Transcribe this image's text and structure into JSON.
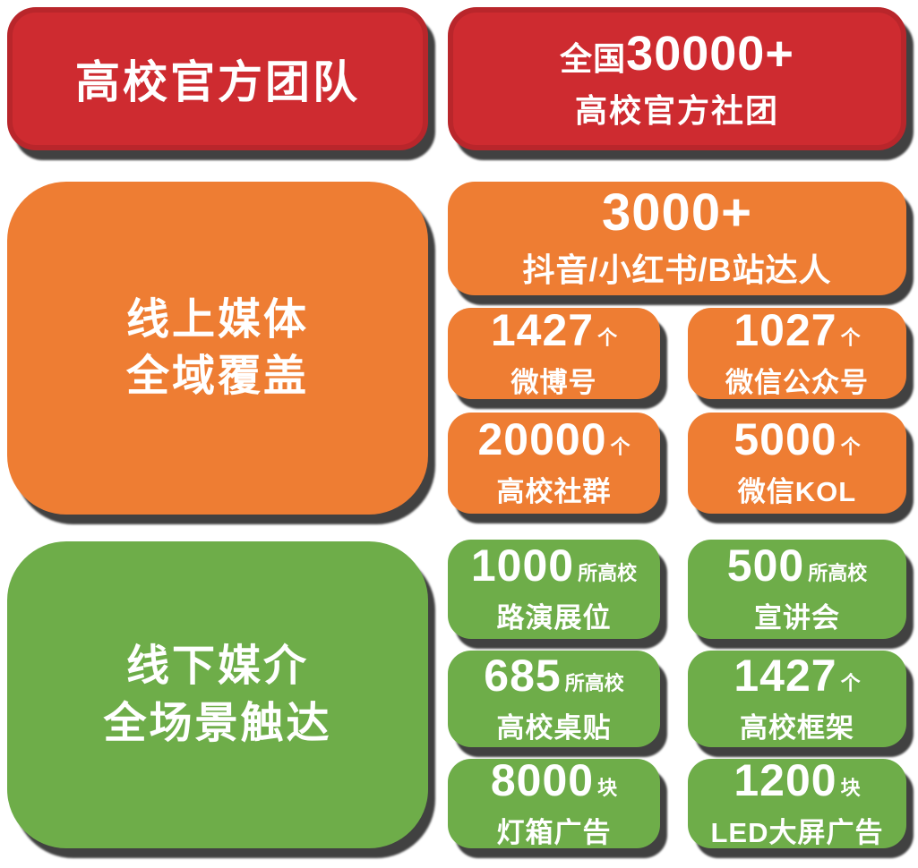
{
  "colors": {
    "red": "#ce2b30",
    "orange": "#ee7d33",
    "green": "#6ead49",
    "text": "#ffffff",
    "background": "#ffffff"
  },
  "red_section": {
    "title": "高校官方团队",
    "stat": {
      "prefix": "全国",
      "number": "30000+",
      "label": "高校官方社团"
    }
  },
  "orange_section": {
    "title_line1": "线上媒体",
    "title_line2": "全域覆盖",
    "wide_stat": {
      "number": "3000+",
      "label": "抖音/小红书/B站达人"
    },
    "stats": [
      {
        "number": "1427",
        "unit": "个",
        "label": "微博号"
      },
      {
        "number": "1027",
        "unit": "个",
        "label": "微信公众号"
      },
      {
        "number": "20000",
        "unit": "个",
        "label": "高校社群"
      },
      {
        "number": "5000",
        "unit": "个",
        "label": "微信KOL"
      }
    ]
  },
  "green_section": {
    "title_line1": "线下媒介",
    "title_line2": "全场景触达",
    "stats": [
      {
        "number": "1000",
        "unit": "所高校",
        "label": "路演展位"
      },
      {
        "number": "500",
        "unit": "所高校",
        "label": "宣讲会"
      },
      {
        "number": "685",
        "unit": "所高校",
        "label": "高校桌贴"
      },
      {
        "number": "1427",
        "unit": "个",
        "label": "高校框架"
      },
      {
        "number": "8000",
        "unit": "块",
        "label": "灯箱广告"
      },
      {
        "number": "1200",
        "unit": "块",
        "label": "LED大屏广告"
      }
    ]
  }
}
